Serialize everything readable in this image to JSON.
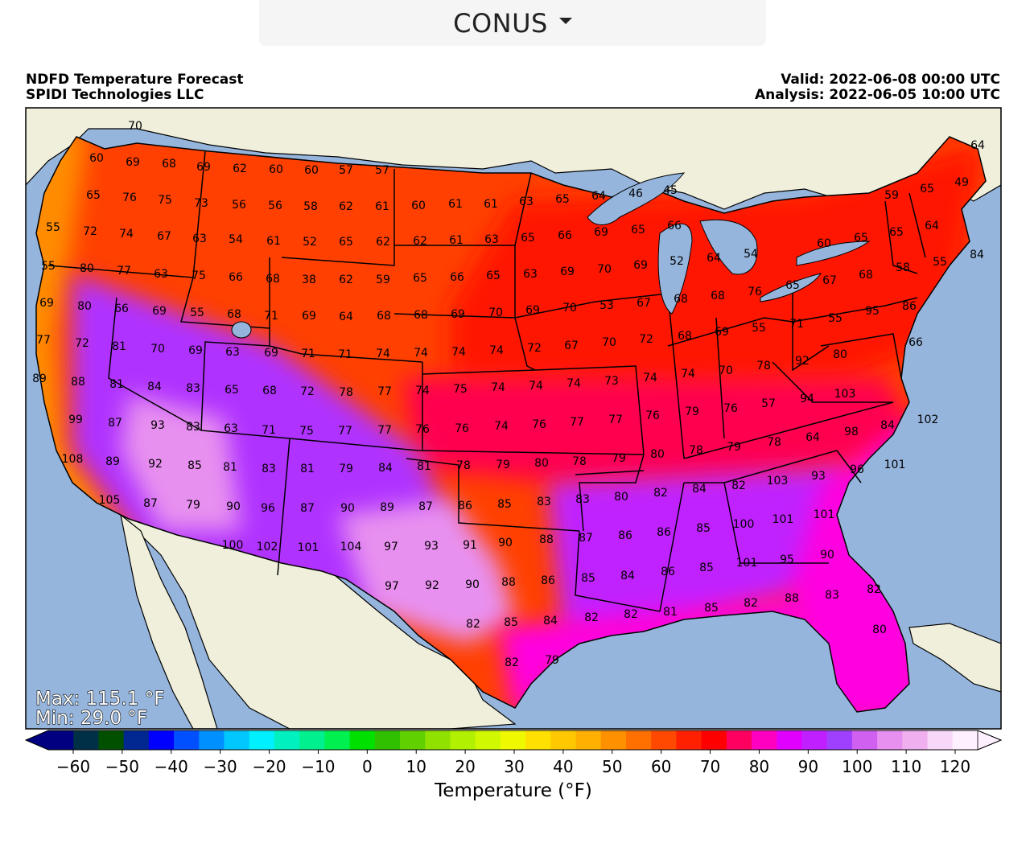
{
  "region_selector": {
    "label": "CONUS",
    "icon": "caret-down-icon"
  },
  "header": {
    "title": "NDFD Temperature Forecast",
    "credit": "SPIDI Technologies LLC",
    "valid": "Valid: 2022-06-08 00:00 UTC",
    "analysis": "Analysis: 2022-06-05 10:00 UTC"
  },
  "stats": {
    "max": "Max: 115.1 °F",
    "min": "Min: 29.0 °F"
  },
  "colorbar": {
    "title": "Temperature (°F)",
    "ticks": [
      "−60",
      "−50",
      "−40",
      "−30",
      "−20",
      "−10",
      "0",
      "10",
      "20",
      "30",
      "40",
      "50",
      "60",
      "70",
      "80",
      "90",
      "100",
      "110",
      "120"
    ],
    "colors": [
      "#000080",
      "#003048",
      "#005000",
      "#002890",
      "#0000ff",
      "#0050ff",
      "#0090ff",
      "#00c8ff",
      "#00f0ff",
      "#00f0c0",
      "#00f090",
      "#00f050",
      "#00e000",
      "#30c000",
      "#60d000",
      "#90e000",
      "#b0f000",
      "#d0f800",
      "#f0f800",
      "#ffe000",
      "#ffc800",
      "#ffb000",
      "#ff9000",
      "#ff7000",
      "#ff4800",
      "#ff2000",
      "#ff0000",
      "#ff0060",
      "#ff00c0",
      "#e000ff",
      "#c020ff",
      "#a040ff",
      "#d060f0",
      "#e890f0",
      "#f0b0f0",
      "#f8d8f8",
      "#fff0ff"
    ]
  },
  "colors": {
    "ocean": "#96b5dd",
    "land": "#efefdc",
    "lake": "#96b5dd",
    "west_coast": "#ff8c00",
    "north": "#ff4000",
    "midwest": "#ff1800",
    "plains": "#ff0050",
    "southwest": "#b030ff",
    "desert": "#e890f0",
    "south": "#c020ff",
    "gulf": "#ff00e0"
  },
  "labels": [
    "70",
    "60",
    "69",
    "68",
    "69",
    "62",
    "60",
    "60",
    "57",
    "57",
    "64",
    "65",
    "76",
    "75",
    "73",
    "56",
    "56",
    "58",
    "62",
    "61",
    "60",
    "61",
    "61",
    "63",
    "65",
    "64",
    "46",
    "45",
    "59",
    "65",
    "49",
    "55",
    "72",
    "74",
    "67",
    "63",
    "54",
    "61",
    "52",
    "65",
    "62",
    "62",
    "61",
    "63",
    "65",
    "66",
    "69",
    "65",
    "66",
    "64",
    "54",
    "60",
    "65",
    "65",
    "64",
    "55",
    "80",
    "77",
    "63",
    "75",
    "66",
    "68",
    "38",
    "62",
    "59",
    "65",
    "66",
    "65",
    "63",
    "69",
    "70",
    "69",
    "52",
    "65",
    "67",
    "68",
    "58",
    "55",
    "84",
    "69",
    "80",
    "66",
    "69",
    "55",
    "68",
    "71",
    "69",
    "64",
    "68",
    "68",
    "69",
    "70",
    "69",
    "70",
    "53",
    "67",
    "68",
    "68",
    "76",
    "71",
    "55",
    "95",
    "86",
    "77",
    "72",
    "81",
    "70",
    "69",
    "63",
    "69",
    "71",
    "71",
    "74",
    "74",
    "74",
    "74",
    "72",
    "67",
    "70",
    "72",
    "68",
    "69",
    "55",
    "80",
    "66",
    "89",
    "88",
    "81",
    "84",
    "83",
    "65",
    "68",
    "72",
    "78",
    "77",
    "74",
    "75",
    "74",
    "74",
    "74",
    "73",
    "74",
    "74",
    "70",
    "78",
    "92",
    "94",
    "103",
    "99",
    "87",
    "93",
    "83",
    "63",
    "71",
    "75",
    "77",
    "77",
    "76",
    "76",
    "74",
    "76",
    "77",
    "77",
    "76",
    "79",
    "76",
    "57",
    "84",
    "102",
    "108",
    "89",
    "92",
    "85",
    "81",
    "83",
    "81",
    "79",
    "84",
    "81",
    "78",
    "79",
    "80",
    "78",
    "79",
    "80",
    "78",
    "79",
    "78",
    "64",
    "98",
    "101",
    "105",
    "87",
    "79",
    "90",
    "96",
    "87",
    "90",
    "89",
    "87",
    "86",
    "85",
    "83",
    "83",
    "80",
    "82",
    "84",
    "82",
    "103",
    "93",
    "96",
    "100",
    "102",
    "101",
    "104",
    "97",
    "93",
    "91",
    "90",
    "88",
    "87",
    "86",
    "86",
    "85",
    "100",
    "101",
    "101",
    "97",
    "92",
    "90",
    "88",
    "86",
    "85",
    "84",
    "86",
    "85",
    "101",
    "95",
    "90",
    "82",
    "85",
    "84",
    "82",
    "82",
    "81",
    "85",
    "82",
    "88",
    "83",
    "82",
    "82",
    "79",
    "80"
  ]
}
